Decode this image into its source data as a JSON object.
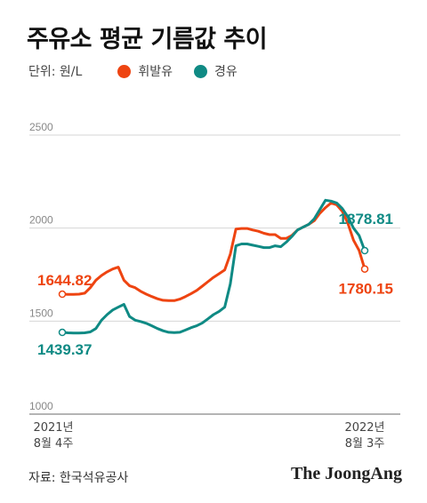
{
  "title": "주유소 평균 기름값 추이",
  "legend": {
    "unit": "단위: 원/L",
    "items": [
      {
        "label": "휘발유",
        "color": "#ee4411"
      },
      {
        "label": "경유",
        "color": "#0f8a84"
      }
    ]
  },
  "source": "자료: 한국석유공사",
  "brand": "The JoongAng",
  "chart_data": {
    "type": "line",
    "title": "주유소 평균 기름값 추이",
    "ylabel": "단위: 원/L",
    "ylim": [
      1000,
      2500
    ],
    "yticks": [
      1000,
      1500,
      2000,
      2500
    ],
    "grid": true,
    "x_tick_labels": [
      {
        "top": "2021년",
        "bottom": "8월 4주"
      },
      {
        "top": "2022년",
        "bottom": "8월 3주"
      }
    ],
    "series": [
      {
        "name": "휘발유",
        "color": "#ee4411",
        "values": [
          1644.82,
          1644,
          1644,
          1645,
          1650,
          1680,
          1720,
          1745,
          1765,
          1780,
          1790,
          1720,
          1690,
          1680,
          1660,
          1645,
          1632,
          1620,
          1612,
          1610,
          1610,
          1618,
          1632,
          1648,
          1665,
          1688,
          1712,
          1735,
          1755,
          1775,
          1860,
          1995,
          1998,
          1998,
          1990,
          1983,
          1972,
          1965,
          1965,
          1945,
          1945,
          1960,
          1990,
          2005,
          2020,
          2040,
          2080,
          2110,
          2135,
          2125,
          2090,
          2025,
          1935,
          1880,
          1780.15
        ],
        "start_label": "1644.82",
        "end_label": "1780.15"
      },
      {
        "name": "경유",
        "color": "#0f8a84",
        "values": [
          1439.37,
          1437,
          1436,
          1436,
          1437,
          1442,
          1460,
          1505,
          1535,
          1560,
          1575,
          1590,
          1525,
          1505,
          1498,
          1488,
          1475,
          1460,
          1448,
          1440,
          1438,
          1440,
          1452,
          1465,
          1475,
          1490,
          1512,
          1535,
          1552,
          1575,
          1700,
          1905,
          1915,
          1915,
          1908,
          1902,
          1895,
          1895,
          1905,
          1900,
          1925,
          1955,
          1990,
          2005,
          2020,
          2050,
          2100,
          2150,
          2145,
          2135,
          2105,
          2060,
          2000,
          1960,
          1878.81
        ],
        "start_label": "1439.37",
        "end_label": "1878.81"
      }
    ]
  }
}
